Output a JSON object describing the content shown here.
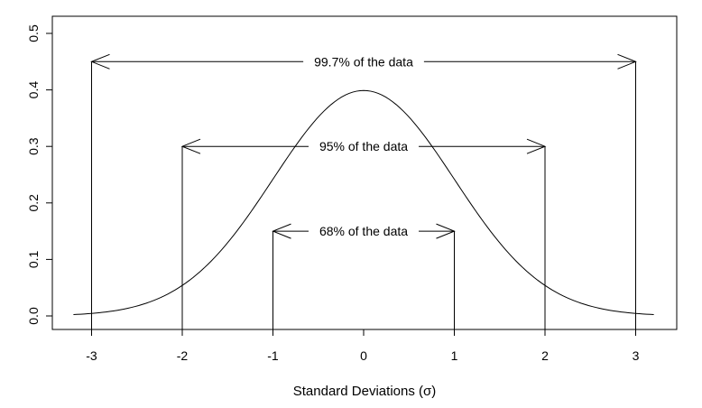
{
  "chart_data": {
    "type": "line",
    "title": "",
    "xlabel": "Standard Deviations (σ)",
    "ylabel": "",
    "xlim": [
      -3.2,
      3.2
    ],
    "ylim": [
      0,
      0.5
    ],
    "xticks": [
      -3,
      -2,
      -1,
      0,
      1,
      2,
      3
    ],
    "xtick_labels": [
      "-3",
      "-2",
      "-1",
      "0",
      "1",
      "2",
      "3"
    ],
    "yticks": [
      0,
      0.1,
      0.2,
      0.3,
      0.4,
      0.5
    ],
    "ytick_labels": [
      "0.0",
      "0.1",
      "0.2",
      "0.3",
      "0.4",
      "0.5"
    ],
    "grid": false,
    "series": [
      {
        "x": [
          -3.2,
          -2.8,
          -2.4,
          -2.0,
          -1.6,
          -1.2,
          -0.8,
          -0.4,
          0,
          0.4,
          0.8,
          1.2,
          1.6,
          2.0,
          2.4,
          2.8,
          3.2
        ],
        "y": [
          0.002,
          0.008,
          0.022,
          0.054,
          0.111,
          0.194,
          0.29,
          0.368,
          0.399,
          0.368,
          0.29,
          0.194,
          0.111,
          0.054,
          0.022,
          0.008,
          0.002
        ]
      }
    ],
    "annotations": [
      {
        "label": "99.7% of the data",
        "x_from": -3,
        "x_to": 3,
        "y": 0.45
      },
      {
        "label": "95% of the data",
        "x_from": -2,
        "x_to": 2,
        "y": 0.3
      },
      {
        "label": "68% of the data",
        "x_from": -1,
        "x_to": 1,
        "y": 0.15
      }
    ]
  }
}
